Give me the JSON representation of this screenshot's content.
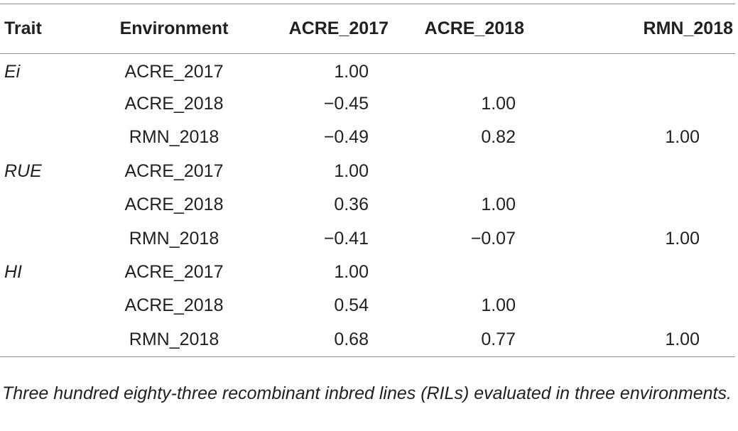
{
  "table": {
    "headers": {
      "trait": "Trait",
      "environment": "Environment",
      "acre_2017": "ACRE_2017",
      "acre_2018": "ACRE_2018",
      "rmn_2018": "RMN_2018"
    },
    "rows": [
      {
        "trait": "Ei",
        "environment": "ACRE_2017",
        "acre_2017": "1.00",
        "acre_2018": "",
        "rmn_2018": ""
      },
      {
        "trait": "",
        "environment": "ACRE_2018",
        "acre_2017": "−0.45",
        "acre_2018": "1.00",
        "rmn_2018": ""
      },
      {
        "trait": "",
        "environment": "RMN_2018",
        "acre_2017": "−0.49",
        "acre_2018": "0.82",
        "rmn_2018": "1.00"
      },
      {
        "trait": "RUE",
        "environment": "ACRE_2017",
        "acre_2017": "1.00",
        "acre_2018": "",
        "rmn_2018": ""
      },
      {
        "trait": "",
        "environment": "ACRE_2018",
        "acre_2017": "0.36",
        "acre_2018": "1.00",
        "rmn_2018": ""
      },
      {
        "trait": "",
        "environment": "RMN_2018",
        "acre_2017": "−0.41",
        "acre_2018": "−0.07",
        "rmn_2018": "1.00"
      },
      {
        "trait": "HI",
        "environment": "ACRE_2017",
        "acre_2017": "1.00",
        "acre_2018": "",
        "rmn_2018": ""
      },
      {
        "trait": "",
        "environment": "ACRE_2018",
        "acre_2017": "0.54",
        "acre_2018": "1.00",
        "rmn_2018": ""
      },
      {
        "trait": "",
        "environment": "RMN_2018",
        "acre_2017": "0.68",
        "acre_2018": "0.77",
        "rmn_2018": "1.00"
      }
    ]
  },
  "footnote": "Three hundred eighty-three recombinant inbred lines (RILs) evaluated in three environments."
}
